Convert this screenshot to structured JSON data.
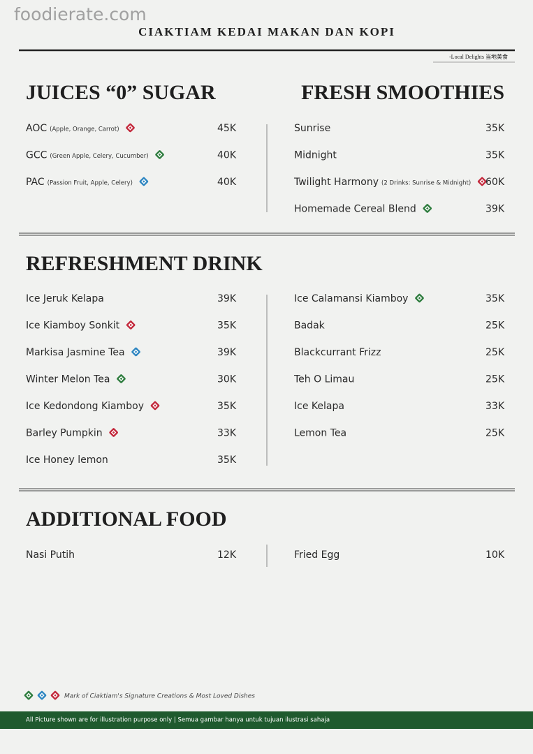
{
  "watermark": "foodierate.com",
  "header": {
    "title": "CIAKTIAM KEDAI MAKAN DAN KOPI",
    "tagline": "-Local Delights 当地美食"
  },
  "juices": {
    "title": "JUICES “0” SUGAR",
    "items": [
      {
        "name": "AOC",
        "note": "(Apple, Orange, Carrot)",
        "badge": "#c3293c",
        "price": "45K"
      },
      {
        "name": "GCC",
        "note": "(Green Apple, Celery, Cucumber)",
        "badge": "#2f7d3f",
        "price": "40K"
      },
      {
        "name": "PAC",
        "note": "(Passion Fruit, Apple, Celery)",
        "badge": "#2e86c1",
        "price": "40K"
      }
    ]
  },
  "smoothies": {
    "title": "FRESH SMOOTHIES",
    "items": [
      {
        "name": "Sunrise",
        "price": "35K"
      },
      {
        "name": "Midnight",
        "price": "35K"
      },
      {
        "name": "Twilight Harmony",
        "note": "(2 Drinks: Sunrise & Midnight)",
        "badge": "#c3293c",
        "price": "60K"
      },
      {
        "name": "Homemade Cereal Blend",
        "badge": "#2f7d3f",
        "price": "39K"
      }
    ]
  },
  "refreshment": {
    "title": "REFRESHMENT DRINK",
    "left": [
      {
        "name": "Ice Jeruk Kelapa",
        "price": "39K"
      },
      {
        "name": "Ice Kiamboy Sonkit",
        "badge": "#c3293c",
        "price": "35K"
      },
      {
        "name": "Markisa Jasmine Tea",
        "badge": "#2e86c1",
        "price": "39K"
      },
      {
        "name": "Winter Melon Tea",
        "badge": "#2f7d3f",
        "price": "30K"
      },
      {
        "name": "Ice Kedondong Kiamboy",
        "badge": "#c3293c",
        "price": "35K"
      },
      {
        "name": "Barley Pumpkin",
        "badge": "#c3293c",
        "price": "33K"
      },
      {
        "name": "Ice Honey lemon",
        "price": "35K"
      }
    ],
    "right": [
      {
        "name": "Ice Calamansi Kiamboy",
        "badge": "#2f7d3f",
        "price": "35K"
      },
      {
        "name": "Badak",
        "price": "25K"
      },
      {
        "name": "Blackcurrant Frizz",
        "price": "25K"
      },
      {
        "name": "Teh O Limau",
        "price": "25K"
      },
      {
        "name": "Ice Kelapa",
        "price": "33K"
      },
      {
        "name": "Lemon Tea",
        "price": "25K"
      }
    ]
  },
  "additional": {
    "title": "ADDITIONAL FOOD",
    "left": [
      {
        "name": "Nasi Putih",
        "price": "12K"
      }
    ],
    "right": [
      {
        "name": "Fried Egg",
        "price": "10K"
      }
    ]
  },
  "legend": {
    "badges": [
      "#2f7d3f",
      "#2e86c1",
      "#c3293c"
    ],
    "text": "Mark of Ciaktiam's Signature Creations & Most Loved Dishes"
  },
  "footer": "All Picture shown are for illustration purpose only | Semua gambar hanya untuk tujuan ilustrasi sahaja"
}
